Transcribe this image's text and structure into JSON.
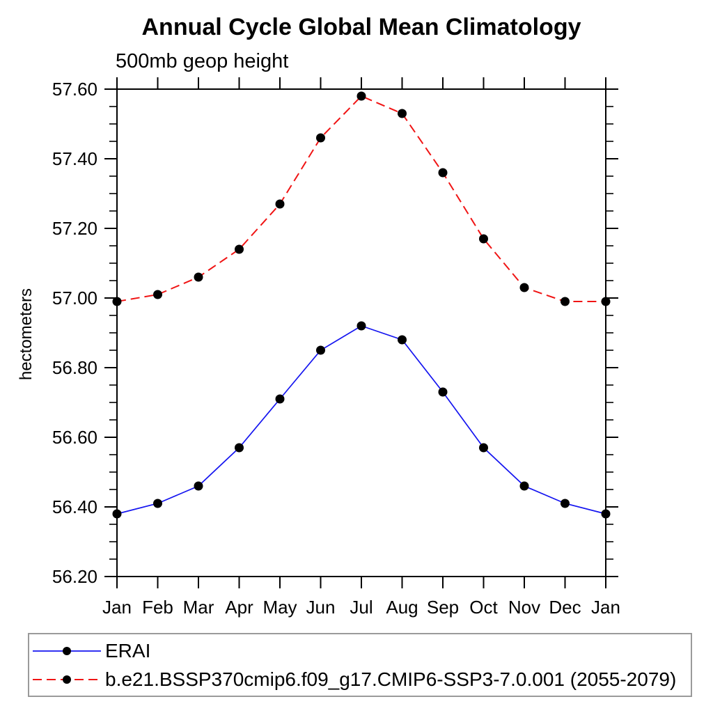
{
  "chart_data": {
    "type": "line",
    "title": "Annual Cycle Global Mean Climatology",
    "subtitle": "500mb geop height",
    "ylabel": "hectometers",
    "xlabel": "",
    "x_tick_labels": [
      "Jan",
      "Feb",
      "Mar",
      "Apr",
      "May",
      "Jun",
      "Jul",
      "Aug",
      "Sep",
      "Oct",
      "Nov",
      "Dec",
      "Jan"
    ],
    "ylim": [
      56.2,
      57.6
    ],
    "y_major_step": 0.2,
    "y_minor_step": 0.05,
    "y_tick_labels": [
      "56.20",
      "56.40",
      "56.60",
      "56.80",
      "57.00",
      "57.20",
      "57.40",
      "57.60"
    ],
    "grid": "off",
    "legend_position": "bottom-outside-boxed",
    "axis_color": "#000000",
    "legend_border_color": "#9a9a9a",
    "marker_color": "#000000",
    "series": [
      {
        "name": "ERAI",
        "color": "#1414f0",
        "line_style": "solid",
        "marker": "filled-circle",
        "values": [
          56.38,
          56.41,
          56.46,
          56.57,
          56.71,
          56.85,
          56.92,
          56.88,
          56.73,
          56.57,
          56.46,
          56.41,
          56.38
        ]
      },
      {
        "name": "b.e21.BSSP370cmip6.f09_g17.CMIP6-SSP3-7.0.001 (2055-2079)",
        "color": "#f01414",
        "line_style": "dashed",
        "marker": "filled-circle",
        "values": [
          56.99,
          57.01,
          57.06,
          57.14,
          57.27,
          57.46,
          57.58,
          57.53,
          57.36,
          57.17,
          57.03,
          56.99,
          56.99
        ]
      }
    ]
  }
}
